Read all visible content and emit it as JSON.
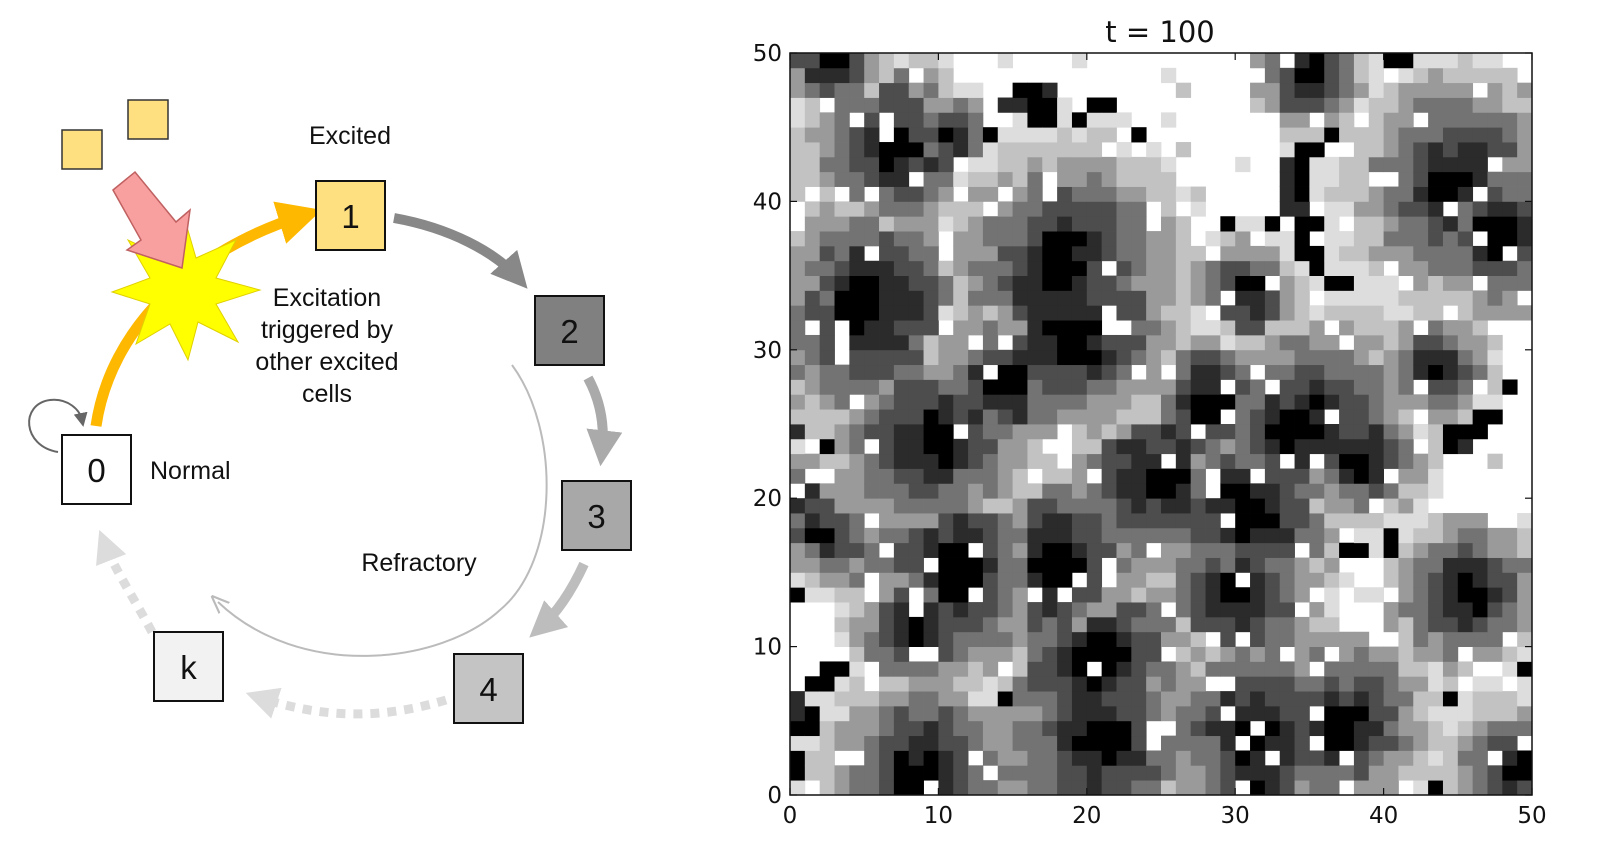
{
  "diagram": {
    "states": [
      {
        "id": "0",
        "label": "0",
        "fill": "#ffffff"
      },
      {
        "id": "1",
        "label": "1",
        "fill": "#ffe080"
      },
      {
        "id": "2",
        "label": "2",
        "fill": "#808080"
      },
      {
        "id": "3",
        "label": "3",
        "fill": "#a8a8a8"
      },
      {
        "id": "4",
        "label": "4",
        "fill": "#c4c4c4"
      },
      {
        "id": "k",
        "label": "k",
        "fill": "#f2f2f2"
      }
    ],
    "labels": {
      "excited": "Excited",
      "normal": "Normal",
      "refractory": "Refractory",
      "trigger": [
        "Excitation",
        "triggered by",
        "other excited",
        "cells"
      ]
    },
    "colors": {
      "excite_arrow": "#ffb800",
      "starburst": "#ffff00",
      "pink_arrow": "#f8a0a0",
      "neighbor_cell": "#ffe080"
    }
  },
  "chart_data": {
    "type": "heatmap",
    "title": "t = 100",
    "xlim": [
      0,
      50
    ],
    "ylim": [
      0,
      50
    ],
    "xticks": [
      "0",
      "10",
      "20",
      "30",
      "40",
      "50"
    ],
    "yticks": [
      "0",
      "10",
      "20",
      "30",
      "40",
      "50"
    ],
    "colormap": "gray_r",
    "grid_size": [
      50,
      50
    ]
  }
}
